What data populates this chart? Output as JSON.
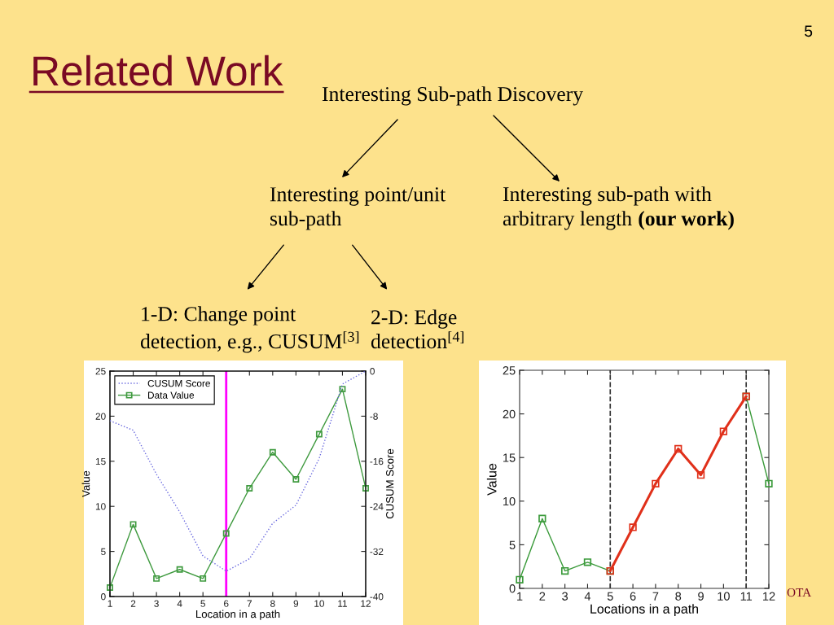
{
  "chart_data": [
    {
      "type": "other",
      "title": "Related Work",
      "annotations": [
        "Interesting Sub-path Discovery",
        "Interesting point/unit\nsub-path",
        "Interesting sub-path with",
        "arbitrary length",
        "(our work)",
        "1-D: Change point\ndetection, e.g., CUSUM$^{[3]}$",
        "2-D: Edge\ndetection$^{[4]}$",
        "5",
        "OTA"
      ]
    },
    {
      "type": "line",
      "x": [
        1,
        2,
        3,
        4,
        5,
        6,
        7,
        8,
        9,
        10,
        11,
        12
      ],
      "xlim": [
        1,
        12
      ],
      "xticks": [
        1,
        2,
        3,
        4,
        5,
        6,
        7,
        8,
        9,
        10,
        11,
        12
      ],
      "ylim": [
        0,
        25
      ],
      "yticks": [
        0,
        5,
        10,
        15,
        20,
        25
      ],
      "y2lim": [
        -40,
        0
      ],
      "y2ticks": [
        -40,
        -32,
        -24,
        -16,
        -8,
        0
      ],
      "xlabel": "Location in a path",
      "ylabel": "Value",
      "y2label": "CUSUM Score",
      "legend": "top left",
      "series": [
        {
          "name": "CUSUM Score",
          "color": "#6b6bdf",
          "axis": "y2",
          "line_style": "dotted",
          "marker": "none",
          "values": [
            -8.8,
            -10.5,
            -18.3,
            -25,
            -32.8,
            -35.5,
            -33.3,
            -27,
            -23.8,
            -15.5,
            -2.3,
            0
          ]
        },
        {
          "name": "Data Value",
          "color": "#3f9a3f",
          "line_style": "solid",
          "marker": "square",
          "values": [
            1,
            8,
            2,
            3,
            2,
            7,
            12,
            16,
            13,
            18,
            23,
            12
          ]
        }
      ],
      "ref_lines": [
        {
          "axis": "x",
          "value": 6,
          "color": "#ff00ff",
          "line_style": "solid"
        }
      ]
    },
    {
      "type": "line",
      "x": [
        1,
        2,
        3,
        4,
        5,
        6,
        7,
        8,
        9,
        10,
        11,
        12
      ],
      "xlim": [
        1,
        12
      ],
      "xticks": [
        1,
        2,
        3,
        4,
        5,
        6,
        7,
        8,
        9,
        10,
        11,
        12
      ],
      "ylim": [
        0,
        25
      ],
      "yticks": [
        0,
        5,
        10,
        15,
        20,
        25
      ],
      "xlabel": "Locations in a path",
      "ylabel": "Value",
      "series": [
        {
          "color": "#3a9a3a",
          "line_style": "solid",
          "marker": "square",
          "values": [
            1,
            8,
            2,
            3,
            2,
            null,
            null,
            null,
            null,
            null,
            22,
            12
          ]
        },
        {
          "color": "#e0301a",
          "line_style": "solid",
          "marker": "square",
          "values": [
            null,
            null,
            null,
            null,
            2,
            7,
            12,
            16,
            13,
            18,
            22,
            null
          ]
        }
      ],
      "ref_lines": [
        {
          "axis": "x",
          "value": 5,
          "color": "#333333",
          "line_style": "dashed"
        },
        {
          "axis": "x",
          "value": 11,
          "color": "#333333",
          "line_style": "dashed"
        }
      ]
    }
  ]
}
